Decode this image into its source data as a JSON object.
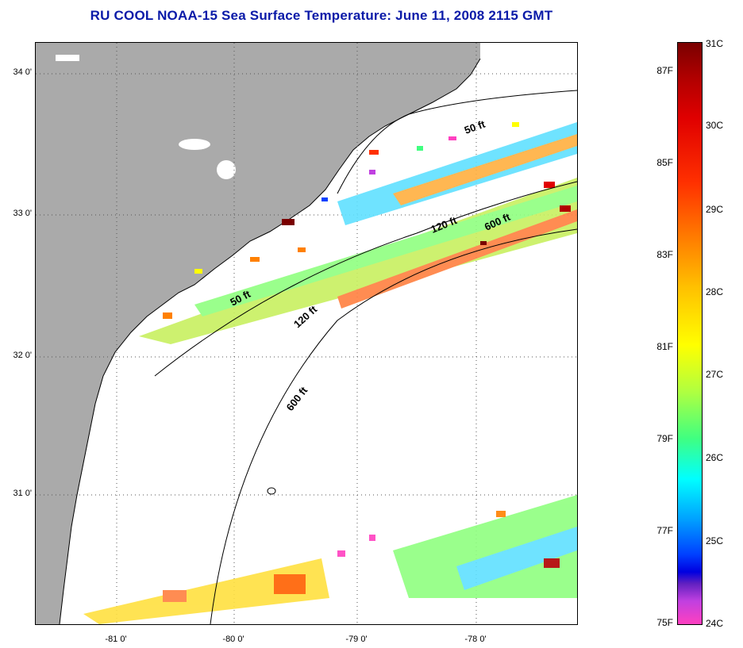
{
  "title": "RU COOL  NOAA-15  Sea Surface Temperature:  June 11, 2008 2115 GMT",
  "lat_labels": [
    "34 0'",
    "33 0'",
    "32 0'",
    "31 0'"
  ],
  "lon_labels": [
    "-81 0'",
    "-80 0'",
    "-79 0'",
    "-78 0'"
  ],
  "contour_labels": [
    "50 ft",
    "120 ft",
    "600 ft",
    "50 ft",
    "120 ft",
    "600 ft"
  ],
  "colorbar": {
    "celsius_labels": [
      "31C",
      "30C",
      "29C",
      "28C",
      "27C",
      "26C",
      "25C",
      "24C"
    ],
    "fahrenheit_labels": [
      "87F",
      "85F",
      "83F",
      "81F",
      "79F",
      "77F",
      "75F"
    ],
    "colors": [
      "#7a0000",
      "#e00000",
      "#ff8000",
      "#ffff00",
      "#40ff80",
      "#00ffff",
      "#0040ff",
      "#c040e0",
      "#ff40c0"
    ]
  },
  "colors": {
    "land": "#aaaaaa",
    "ocean": "#ffffff",
    "title": "#0a1aa8"
  }
}
